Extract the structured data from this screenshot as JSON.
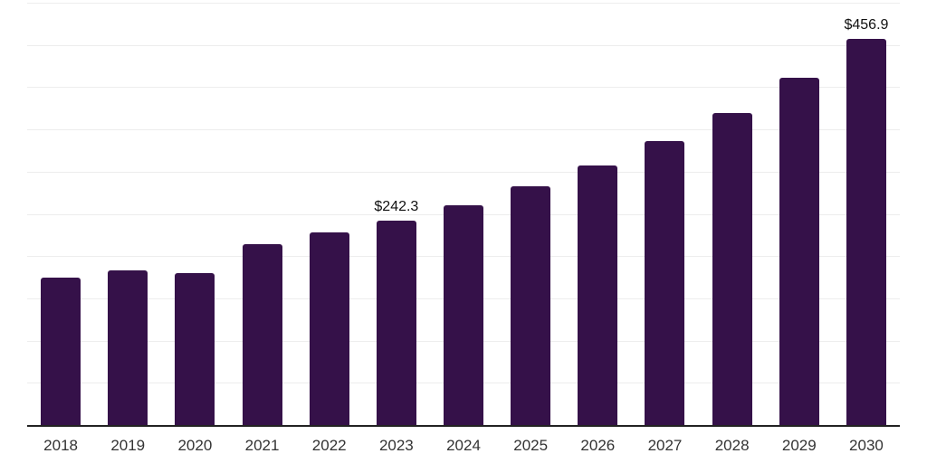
{
  "chart_data": {
    "type": "bar",
    "title": "",
    "xlabel": "",
    "ylabel": "",
    "categories": [
      "2018",
      "2019",
      "2020",
      "2021",
      "2022",
      "2023",
      "2024",
      "2025",
      "2026",
      "2027",
      "2028",
      "2029",
      "2030"
    ],
    "values": [
      174.0,
      183.5,
      180.3,
      214.5,
      228.0,
      242.3,
      260.5,
      282.5,
      307.5,
      336.5,
      369.5,
      411.0,
      456.9
    ],
    "labels": [
      null,
      null,
      null,
      null,
      null,
      "$242.3",
      null,
      null,
      null,
      null,
      null,
      null,
      "$456.9"
    ],
    "ylim": [
      0,
      500
    ],
    "gridline_step": 50,
    "grid": true,
    "legend": false,
    "colors": {
      "bar": "#351149",
      "axis": "#222222",
      "gridline": "#ededed",
      "tick_label": "#333333",
      "value_label": "#111111",
      "background": "#ffffff"
    }
  }
}
